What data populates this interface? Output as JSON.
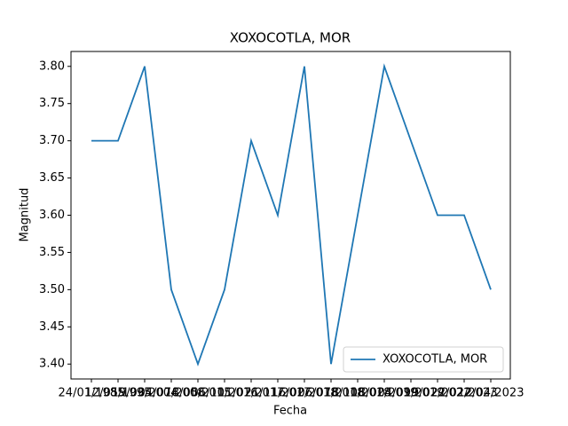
{
  "chart_data": {
    "type": "line",
    "title": "XOXOCOTLA, MOR",
    "xlabel": "Fecha",
    "ylabel": "Magnitud",
    "categories": [
      "24/01/1985",
      "12/05/1995",
      "19/03/2004",
      "04/07/2008",
      "18/05/2015",
      "06/10/2016",
      "11/07/2017",
      "21/11/2017",
      "16/02/2018",
      "06/07/2018",
      "18/10/2018",
      "18/02/2019",
      "04/09/2019",
      "19/02/2022",
      "22/02/2023",
      "12/04/2023"
    ],
    "series": [
      {
        "name": "XOXOCOTLA, MOR",
        "color": "#1f77b4",
        "values": [
          3.7,
          3.7,
          3.8,
          3.5,
          3.4,
          3.5,
          3.7,
          3.6,
          3.8,
          3.4,
          3.6,
          3.8,
          3.7,
          3.6,
          3.6,
          3.5
        ]
      }
    ],
    "ylim": [
      3.38,
      3.82
    ],
    "yticks": [
      {
        "value": 3.4,
        "label": "3.40"
      },
      {
        "value": 3.45,
        "label": "3.45"
      },
      {
        "value": 3.5,
        "label": "3.50"
      },
      {
        "value": 3.55,
        "label": "3.55"
      },
      {
        "value": 3.6,
        "label": "3.60"
      },
      {
        "value": 3.65,
        "label": "3.65"
      },
      {
        "value": 3.7,
        "label": "3.70"
      },
      {
        "value": 3.75,
        "label": "3.75"
      },
      {
        "value": 3.8,
        "label": "3.80"
      }
    ],
    "legend": "lower right",
    "grid": false
  }
}
